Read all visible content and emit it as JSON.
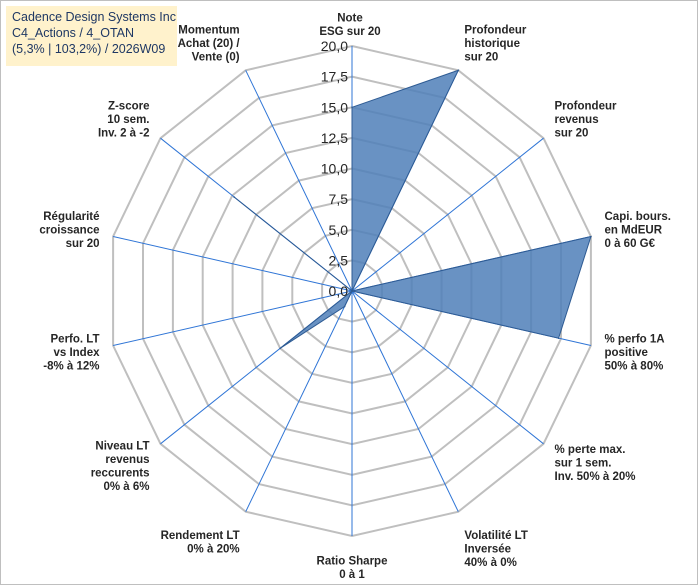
{
  "title": {
    "line1": "Cadence Design Systems Inc",
    "line2": "C4_Actions / 4_OTAN",
    "line3": "(5,3% | 103,2%) / 2026W09"
  },
  "colors": {
    "fill": "#4f7fb8",
    "stroke": "#2e5b93",
    "grid": "#bfbfbf",
    "spoke": "#2f75d6",
    "title_bg": "#fff2cc"
  },
  "chart_data": {
    "type": "radar",
    "rmin": 0,
    "rmax": 20,
    "ticks": [
      "0,0",
      "2,5",
      "5,0",
      "7,5",
      "10,0",
      "12,5",
      "15,0",
      "17,5",
      "20,0"
    ],
    "tick_values": [
      0,
      2.5,
      5,
      7.5,
      10,
      12.5,
      15,
      17.5,
      20
    ],
    "axes": [
      {
        "label": [
          "Note",
          "ESG sur 20"
        ],
        "value": 15.0
      },
      {
        "label": [
          "Profondeur",
          "historique",
          "sur 20"
        ],
        "value": 20.0
      },
      {
        "label": [
          "Profondeur",
          "revenus",
          "sur 20"
        ],
        "value": 0.0
      },
      {
        "label": [
          "Capi. bours.",
          "en MdEUR",
          "0 à 60 G€"
        ],
        "value": 20.0
      },
      {
        "label": [
          "% perfo 1A",
          "positive",
          "50% à 80%"
        ],
        "value": 17.3
      },
      {
        "label": [
          "% perte max.",
          "sur 1 sem.",
          "Inv. 50% à 20%"
        ],
        "value": 0.0
      },
      {
        "label": [
          "Volatilité LT",
          "Inversée",
          "40% à 0%"
        ],
        "value": 0.0
      },
      {
        "label": [
          "Ratio Sharpe",
          "0 à 1"
        ],
        "value": 0.0
      },
      {
        "label": [
          "Rendement LT",
          "0% à 20%"
        ],
        "value": 1.4
      },
      {
        "label": [
          "Niveau LT",
          "revenus",
          "reccurents",
          "0% à 6%"
        ],
        "value": 7.5
      },
      {
        "label": [
          "Perfo. LT",
          "vs Index",
          "-8% à 12%"
        ],
        "value": 0.0
      },
      {
        "label": [
          "Régularité",
          "croissance",
          "sur 20"
        ],
        "value": 0.0
      },
      {
        "label": [
          "Z-score",
          "10 sem.",
          "Inv. 2 à -2"
        ],
        "value": 12.3
      },
      {
        "label": [
          "Momentum",
          "Achat (20) /",
          "Vente (0)"
        ],
        "value": 0.0
      }
    ]
  }
}
